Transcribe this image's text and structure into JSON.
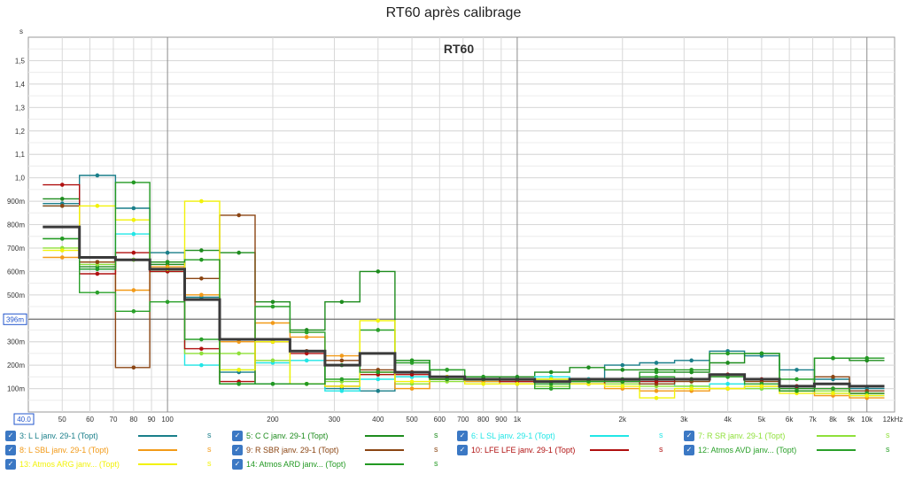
{
  "title": "RT60 après calibrage",
  "chart_data": {
    "type": "line",
    "title": "RT60 après calibrage",
    "inner_title": "RT60",
    "y_unit": "s",
    "x_unit": "12kHz",
    "xlim": [
      40,
      12000
    ],
    "ylim": [
      0,
      1.6
    ],
    "x_scale": "log",
    "marker_value_label": "396m",
    "marker_value": 0.396,
    "x_start_label": "40.0",
    "y_ticks": [
      {
        "v": 0.1,
        "label": "100m"
      },
      {
        "v": 0.2,
        "label": "200m"
      },
      {
        "v": 0.3,
        "label": "300m"
      },
      {
        "v": 0.5,
        "label": "500m"
      },
      {
        "v": 0.6,
        "label": "600m"
      },
      {
        "v": 0.7,
        "label": "700m"
      },
      {
        "v": 0.8,
        "label": "800m"
      },
      {
        "v": 0.9,
        "label": "900m"
      },
      {
        "v": 1.0,
        "label": "1,0"
      },
      {
        "v": 1.1,
        "label": "1,1"
      },
      {
        "v": 1.2,
        "label": "1,2"
      },
      {
        "v": 1.3,
        "label": "1,3"
      },
      {
        "v": 1.4,
        "label": "1,4"
      },
      {
        "v": 1.5,
        "label": "1,5"
      }
    ],
    "x_ticks": [
      {
        "v": 50,
        "label": "50"
      },
      {
        "v": 60,
        "label": "60"
      },
      {
        "v": 70,
        "label": "70"
      },
      {
        "v": 80,
        "label": "80"
      },
      {
        "v": 90,
        "label": "90"
      },
      {
        "v": 100,
        "label": "100"
      },
      {
        "v": 200,
        "label": "200"
      },
      {
        "v": 300,
        "label": "300"
      },
      {
        "v": 400,
        "label": "400"
      },
      {
        "v": 500,
        "label": "500"
      },
      {
        "v": 600,
        "label": "600"
      },
      {
        "v": 700,
        "label": "700"
      },
      {
        "v": 800,
        "label": "800"
      },
      {
        "v": 900,
        "label": "900"
      },
      {
        "v": 1000,
        "label": "1k"
      },
      {
        "v": 2000,
        "label": "2k"
      },
      {
        "v": 3000,
        "label": "3k"
      },
      {
        "v": 4000,
        "label": "4k"
      },
      {
        "v": 5000,
        "label": "5k"
      },
      {
        "v": 6000,
        "label": "6k"
      },
      {
        "v": 7000,
        "label": "7k"
      },
      {
        "v": 8000,
        "label": "8k"
      },
      {
        "v": 9000,
        "label": "9k"
      },
      {
        "v": 10000,
        "label": "10k"
      }
    ],
    "bands": [
      {
        "lo": 44,
        "hi": 56,
        "c": 50
      },
      {
        "lo": 56,
        "hi": 71,
        "c": 63
      },
      {
        "lo": 71,
        "hi": 89,
        "c": 80
      },
      {
        "lo": 89,
        "hi": 112,
        "c": 100
      },
      {
        "lo": 112,
        "hi": 141,
        "c": 125
      },
      {
        "lo": 141,
        "hi": 178,
        "c": 160
      },
      {
        "lo": 178,
        "hi": 224,
        "c": 200
      },
      {
        "lo": 224,
        "hi": 282,
        "c": 250
      },
      {
        "lo": 282,
        "hi": 355,
        "c": 315
      },
      {
        "lo": 355,
        "hi": 447,
        "c": 400
      },
      {
        "lo": 447,
        "hi": 562,
        "c": 500
      },
      {
        "lo": 562,
        "hi": 708,
        "c": 630
      },
      {
        "lo": 708,
        "hi": 891,
        "c": 800
      },
      {
        "lo": 891,
        "hi": 1122,
        "c": 1000
      },
      {
        "lo": 1122,
        "hi": 1413,
        "c": 1250
      },
      {
        "lo": 1413,
        "hi": 1778,
        "c": 1600
      },
      {
        "lo": 1778,
        "hi": 2239,
        "c": 2000
      },
      {
        "lo": 2239,
        "hi": 2818,
        "c": 2500
      },
      {
        "lo": 2818,
        "hi": 3548,
        "c": 3150
      },
      {
        "lo": 3548,
        "hi": 4467,
        "c": 4000
      },
      {
        "lo": 4467,
        "hi": 5623,
        "c": 5000
      },
      {
        "lo": 5623,
        "hi": 7079,
        "c": 6300
      },
      {
        "lo": 7079,
        "hi": 8913,
        "c": 8000
      },
      {
        "lo": 8913,
        "hi": 11220,
        "c": 10000
      }
    ],
    "series": [
      {
        "name": "3: L L janv. 29-1 (Topt)",
        "color": "#1a7f8a",
        "values": [
          0.89,
          1.01,
          0.87,
          0.68,
          0.49,
          0.17,
          0.12,
          0.12,
          0.1,
          0.09,
          0.15,
          0.14,
          0.14,
          0.13,
          0.14,
          0.14,
          0.2,
          0.21,
          0.22,
          0.26,
          0.24,
          0.18,
          0.14,
          0.1
        ]
      },
      {
        "name": "5: C C janv. 29-1 (Topt)",
        "color": "#1e8c1e",
        "values": [
          0.91,
          0.62,
          0.65,
          0.63,
          0.69,
          0.68,
          0.47,
          0.35,
          0.47,
          0.6,
          0.22,
          0.18,
          0.15,
          0.15,
          0.17,
          0.19,
          0.18,
          0.18,
          0.17,
          0.21,
          0.25,
          0.1,
          0.23,
          0.22
        ]
      },
      {
        "name": "6: L SL janv. 29-1 (Topt)",
        "color": "#22e6e6",
        "values": [
          0.88,
          0.61,
          0.76,
          0.6,
          0.2,
          0.18,
          0.21,
          0.22,
          0.09,
          0.14,
          0.15,
          0.14,
          0.13,
          0.14,
          0.15,
          0.14,
          0.13,
          0.13,
          0.11,
          0.12,
          0.1,
          0.09,
          0.08,
          0.07
        ]
      },
      {
        "name": "7: R SR janv. 29-1 (Topt)",
        "color": "#8fe03a",
        "values": [
          0.7,
          0.63,
          0.65,
          0.6,
          0.25,
          0.25,
          0.22,
          0.12,
          0.13,
          0.16,
          0.12,
          0.13,
          0.13,
          0.12,
          0.11,
          0.13,
          0.12,
          0.11,
          0.11,
          0.1,
          0.1,
          0.09,
          0.09,
          0.08
        ]
      },
      {
        "name": "8: L SBL janv. 29-1 (Topt)",
        "color": "#f29a18",
        "values": [
          0.66,
          0.64,
          0.52,
          0.62,
          0.5,
          0.3,
          0.38,
          0.32,
          0.24,
          0.17,
          0.1,
          0.14,
          0.13,
          0.12,
          0.13,
          0.13,
          0.1,
          0.09,
          0.09,
          0.1,
          0.11,
          0.09,
          0.07,
          0.06
        ]
      },
      {
        "name": "9: R SBR janv. 29-1 (Topt)",
        "color": "#8b4513",
        "values": [
          0.88,
          0.64,
          0.19,
          0.64,
          0.57,
          0.84,
          0.3,
          0.26,
          0.22,
          0.18,
          0.17,
          0.15,
          0.14,
          0.13,
          0.13,
          0.12,
          0.13,
          0.12,
          0.13,
          0.15,
          0.13,
          0.11,
          0.15,
          0.09
        ]
      },
      {
        "name": "10: LFE LFE janv. 29-1 (Topt)",
        "color": "#b01010",
        "values": [
          0.97,
          0.59,
          0.68,
          0.6,
          0.27,
          0.13,
          0.3,
          0.25,
          0.11,
          0.16,
          0.16,
          0.14,
          0.14,
          0.13,
          0.13,
          0.12,
          0.13,
          0.13,
          0.14,
          0.16,
          0.14,
          0.11,
          0.1,
          0.08
        ]
      },
      {
        "name": "12: Atmos AVD janv... (Topt)",
        "color": "#2aa02a",
        "values": [
          0.74,
          0.51,
          0.43,
          0.47,
          0.31,
          0.12,
          0.45,
          0.34,
          0.14,
          0.35,
          0.21,
          0.18,
          0.14,
          0.14,
          0.1,
          0.13,
          0.14,
          0.15,
          0.14,
          0.15,
          0.12,
          0.14,
          0.1,
          0.08
        ]
      },
      {
        "name": "13: Atmos ARG janv... (Topt)",
        "color": "#f2f20a",
        "values": [
          0.69,
          0.88,
          0.82,
          0.61,
          0.9,
          0.18,
          0.3,
          0.12,
          0.11,
          0.39,
          0.13,
          0.15,
          0.12,
          0.12,
          0.14,
          0.12,
          0.11,
          0.06,
          0.1,
          0.1,
          0.11,
          0.08,
          0.08,
          0.07
        ]
      },
      {
        "name": "14: Atmos ARD janv... (Topt)",
        "color": "#229922",
        "values": [
          0.74,
          0.61,
          0.98,
          0.64,
          0.65,
          0.12,
          0.12,
          0.12,
          0.2,
          0.17,
          0.22,
          0.14,
          0.15,
          0.14,
          0.12,
          0.13,
          0.13,
          0.17,
          0.18,
          0.25,
          0.25,
          0.09,
          0.23,
          0.23
        ]
      }
    ],
    "average": {
      "color": "#3a3a3a",
      "values": [
        0.79,
        0.66,
        0.65,
        0.61,
        0.48,
        0.31,
        0.31,
        0.26,
        0.2,
        0.25,
        0.17,
        0.15,
        0.14,
        0.14,
        0.13,
        0.14,
        0.14,
        0.14,
        0.14,
        0.16,
        0.14,
        0.11,
        0.12,
        0.11
      ]
    }
  },
  "legend": [
    {
      "label": "3: L L janv. 29-1 (Topt)",
      "color": "#1a7f8a",
      "unit": "s",
      "checked": "✓"
    },
    {
      "label": "5: C C janv. 29-1 (Topt)",
      "color": "#1e8c1e",
      "unit": "s",
      "checked": "✓"
    },
    {
      "label": "6: L SL janv. 29-1 (Topt)",
      "color": "#22e6e6",
      "unit": "s",
      "checked": "✓"
    },
    {
      "label": "7: R SR janv. 29-1 (Topt)",
      "color": "#8fe03a",
      "unit": "s",
      "checked": "✓"
    },
    {
      "label": "8: L SBL janv. 29-1 (Topt)",
      "color": "#f29a18",
      "unit": "s",
      "checked": "✓"
    },
    {
      "label": "9: R SBR janv. 29-1 (Topt)",
      "color": "#8b4513",
      "unit": "s",
      "checked": "✓"
    },
    {
      "label": "10: LFE LFE janv. 29-1 (Topt)",
      "color": "#b01010",
      "unit": "s",
      "checked": "✓"
    },
    {
      "label": "12: Atmos AVD janv... (Topt)",
      "color": "#2aa02a",
      "unit": "s",
      "checked": "✓"
    },
    {
      "label": "13: Atmos ARG janv... (Topt)",
      "color": "#f2f20a",
      "unit": "s",
      "checked": "✓"
    },
    {
      "label": "14: Atmos ARD janv... (Topt)",
      "color": "#229922",
      "unit": "s",
      "checked": "✓"
    }
  ]
}
